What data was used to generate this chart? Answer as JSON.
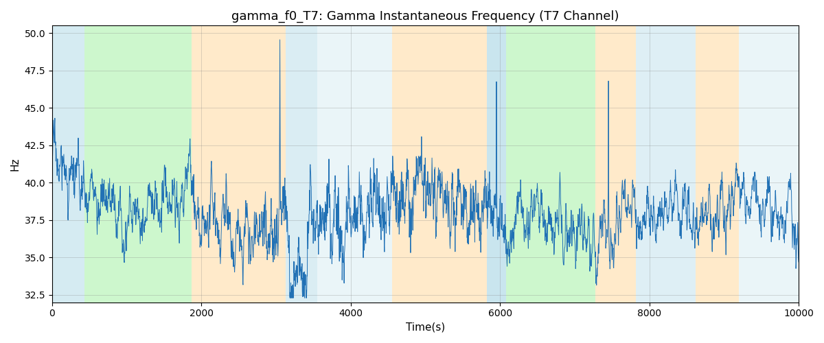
{
  "title": "gamma_f0_T7: Gamma Instantaneous Frequency (T7 Channel)",
  "xlabel": "Time(s)",
  "ylabel": "Hz",
  "xlim": [
    0,
    10000
  ],
  "ylim": [
    32.0,
    50.5
  ],
  "yticks": [
    32.5,
    35.0,
    37.5,
    40.0,
    42.5,
    45.0,
    47.5,
    50.0
  ],
  "xticks": [
    0,
    2000,
    4000,
    6000,
    8000,
    10000
  ],
  "figsize": [
    12,
    5
  ],
  "dpi": 100,
  "signal_color": "#2171b5",
  "signal_linewidth": 0.7,
  "grid_color": "gray",
  "grid_alpha": 0.4,
  "grid_linewidth": 0.5,
  "background_color": "white",
  "bands": [
    {
      "start": 0,
      "end": 430,
      "color": "#add8e6",
      "alpha": 0.5
    },
    {
      "start": 430,
      "end": 1870,
      "color": "#90ee90",
      "alpha": 0.45
    },
    {
      "start": 1870,
      "end": 3130,
      "color": "#ffd9a0",
      "alpha": 0.55
    },
    {
      "start": 3130,
      "end": 3550,
      "color": "#add8e6",
      "alpha": 0.45
    },
    {
      "start": 3550,
      "end": 4550,
      "color": "#add8e6",
      "alpha": 0.25
    },
    {
      "start": 4550,
      "end": 5820,
      "color": "#ffd9a0",
      "alpha": 0.55
    },
    {
      "start": 5820,
      "end": 6080,
      "color": "#add8e6",
      "alpha": 0.65
    },
    {
      "start": 6080,
      "end": 7280,
      "color": "#90ee90",
      "alpha": 0.45
    },
    {
      "start": 7280,
      "end": 7820,
      "color": "#ffd9a0",
      "alpha": 0.55
    },
    {
      "start": 7820,
      "end": 8620,
      "color": "#add8e6",
      "alpha": 0.4
    },
    {
      "start": 8620,
      "end": 9200,
      "color": "#ffd9a0",
      "alpha": 0.55
    },
    {
      "start": 9200,
      "end": 10000,
      "color": "#add8e6",
      "alpha": 0.25
    }
  ],
  "seed": 17,
  "n_points": 3000,
  "base_freq": 37.8,
  "noise_std": 1.2
}
